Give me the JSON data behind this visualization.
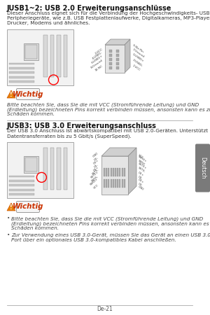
{
  "page_number": "De-21",
  "background_color": "#ffffff",
  "tab_color": "#7a7a7a",
  "tab_text": "Deutsch",
  "tab_text_color": "#ffffff",
  "section1_title": "JUSB1~2: USB 2.0 Erweiterungsanschlüsse",
  "section1_body_lines": [
    "Dieser Anschluss eignet sich für die Verbindung der Hochgeschwindigkeits- USB-",
    "Peripheriegeräte, wie z.B. USB Festplattenlaufwerke, Digitalkameras, MP3-Player,",
    "Drucker, Modems und ähnliches."
  ],
  "warning1_title": "Wichtig",
  "warning1_body_lines": [
    "Bitte beachten Sie, dass Sie die mit VCC (Stromführende Leitung) und GND",
    "(Erdleitung) bezeichneten Pins korrekt verbinden müssen, ansonsten kann es zu",
    "Schäden kommen."
  ],
  "section2_title": "JUSB3: USB 3.0 Erweiterungsanschluss",
  "section2_body_lines": [
    "Der USB 3.0 Anschluss ist abwärtskompatibel mit USB 2.0-Geräten. Unterstützt",
    "Datentransferraten bis zu 5 Gbit/s (SuperSpeed)."
  ],
  "warning2_title": "Wichtig",
  "warning2_bullet1_lines": [
    "Bitte beachten Sie, dass Sie die mit VCC (Stromführende Leitung) und GND",
    "(Erdleitung) bezeichneten Pins korrekt verbinden müssen, ansonsten kann es zu",
    "Schäden kommen."
  ],
  "warning2_bullet2_lines": [
    "Zur Verwendung eines USB 3.0-Gerät, müssen Sie das Gerät an einen USB 3.0",
    "Port über ein optionales USB 3.0-kompatibles Kabel anschließen."
  ],
  "divider_color": "#aaaaaa",
  "title_fontsize": 7.0,
  "body_fontsize": 5.2,
  "warn_title_fontsize": 7.5,
  "warn_body_fontsize": 5.2,
  "page_num_fontsize": 5.5,
  "pin_labels_left": [
    "10.NC",
    "8.Ground",
    "6.USB1+",
    "4.USB1-",
    "2.VCC"
  ],
  "pin_labels_right": [
    "1.VCC",
    "3.USB0-",
    "5.USB0+",
    "7.Ground",
    "9.No Pin"
  ],
  "gray_text": "#555555",
  "body_text": "#333333",
  "italic_text": "#444444",
  "mb_border": "#999999",
  "mb_fill": "#f2f2f2",
  "mb_dark": "#d8d8d8",
  "mb_medium": "#e0e0e0",
  "conn_face": "#e5e5e5",
  "conn_top": "#d0d0d0",
  "conn_right": "#c0c0c0",
  "pin_face": "#aaaaaa",
  "warn_orange": "#e8820a",
  "warn_red_text": "#cc3300",
  "warn_box_fill": "#f5f5f5",
  "warn_box_edge": "#999999"
}
